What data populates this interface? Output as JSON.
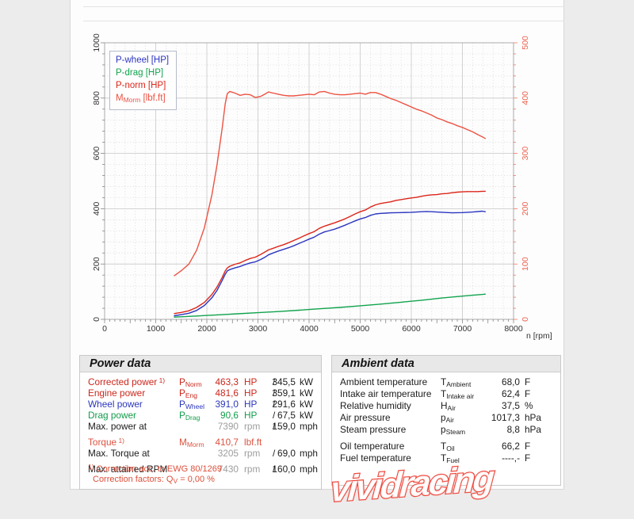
{
  "page": {
    "watermark": "vividracing"
  },
  "power_data": {
    "title": "Power data",
    "rows": [
      {
        "label": "Corrected power",
        "sup": "1)",
        "sym": "P",
        "sub": "Norm",
        "v1": "463,3",
        "u1": "HP",
        "slash": "/",
        "v2": "345,5",
        "u2": "kW",
        "color": "red",
        "dim1": false
      },
      {
        "label": "Engine power",
        "sym": "P",
        "sub": "Eng",
        "v1": "481,6",
        "u1": "HP",
        "slash": "/",
        "v2": "359,1",
        "u2": "kW",
        "color": "red",
        "dim1": false
      },
      {
        "label": "Wheel power",
        "sym": "P",
        "sub": "Wheel",
        "v1": "391,0",
        "u1": "HP",
        "slash": "/",
        "v2": "291,6",
        "u2": "kW",
        "color": "blue",
        "dim1": false
      },
      {
        "label": "Drag power",
        "sym": "P",
        "sub": "Drag",
        "v1": "90,6",
        "u1": "HP",
        "slash": "/",
        "v2": "67,5",
        "u2": "kW",
        "color": "green",
        "dim1": false
      },
      {
        "label": "Max. power at",
        "v1": "7390",
        "u1": "rpm",
        "slash": "/",
        "v2": "159,0",
        "u2": "mph",
        "color": "black",
        "dim1": true
      },
      {
        "gap": true
      },
      {
        "label": "Torque",
        "sup": "1)",
        "sym": "M",
        "sub": "Morm",
        "v1": "410,7",
        "u1": "lbf.ft",
        "color": "orange",
        "dim1": false
      },
      {
        "label": "Max. Torque at",
        "v1": "3205",
        "u1": "rpm",
        "slash": "/",
        "v2": "69,0",
        "u2": "mph",
        "color": "black",
        "dim1": true
      },
      {
        "gap": true
      },
      {
        "label": "Max. attained RPM",
        "v1": "7430",
        "u1": "rpm",
        "slash": "/",
        "v2": "160,0",
        "u2": "mph",
        "color": "black",
        "dim1": true
      }
    ],
    "footnote_line1": {
      "sup": "1)",
      "text": " Correction acc. to EWG 80/1269"
    },
    "footnote_line2": {
      "pre": "Correction factors: Q",
      "sub": "V",
      "post": " =   0,00 %"
    }
  },
  "ambient_data": {
    "title": "Ambient data",
    "rows": [
      {
        "label": "Ambient temperature",
        "sym": "T",
        "sub": "Ambient",
        "val": "68,0",
        "unit": "F"
      },
      {
        "label": "Intake air temperature",
        "sym": "T",
        "sub": "Intake air",
        "val": "62,4",
        "unit": "F"
      },
      {
        "label": "Relative humidity",
        "sym": "H",
        "sub": "Air",
        "val": "37,5",
        "unit": "%"
      },
      {
        "label": "Air pressure",
        "sym": "p",
        "sub": "Air",
        "val": "1017,3",
        "unit": "hPa"
      },
      {
        "label": "Steam pressure",
        "sym": "p",
        "sub": "Steam",
        "val": "8,8",
        "unit": "hPa"
      },
      {
        "gap": true
      },
      {
        "label": "Oil temperature",
        "sym": "T",
        "sub": "Oil",
        "val": "66,2",
        "unit": "F"
      },
      {
        "label": "Fuel temperature",
        "sym": "T",
        "sub": "Fuel",
        "val": "----,-",
        "unit": "F"
      }
    ]
  },
  "chart_data": {
    "type": "line",
    "title": "",
    "grid": true,
    "legend_position": "top-left",
    "x_axis": {
      "label": "n [rpm]",
      "min": 0,
      "max": 8000,
      "major_step": 1000,
      "minor_step": 200,
      "ticks": [
        0,
        1000,
        2000,
        3000,
        4000,
        5000,
        6000,
        7000,
        8000
      ]
    },
    "y_left": {
      "label": "",
      "min": 0,
      "max": 1000,
      "major_step": 200,
      "minor_step": 40,
      "ticks": [
        0,
        200,
        400,
        600,
        800,
        1000
      ],
      "color": "#333333"
    },
    "y_right": {
      "label": "",
      "min": 0,
      "max": 500,
      "major_step": 100,
      "minor_step": 20,
      "ticks": [
        0,
        100,
        200,
        300,
        400,
        500
      ],
      "color": "#ed6450"
    },
    "legend": [
      {
        "pre": "P-wheel [HP]",
        "color": "#2c35c0"
      },
      {
        "pre": "P-drag [HP]",
        "color": "#12a34e"
      },
      {
        "pre": "P-norm [HP]",
        "color": "#dc251a"
      },
      {
        "pre": "M",
        "sub": "Morm",
        "post": " [lbf.ft]",
        "color": "#ed5242"
      }
    ],
    "series": [
      {
        "id": "p-drag",
        "name": "P-drag [HP]",
        "axis": "left",
        "unit": "HP",
        "color": "#12a34e",
        "points": [
          [
            1365,
            8
          ],
          [
            1800,
            12
          ],
          [
            2200,
            16
          ],
          [
            2600,
            20
          ],
          [
            3000,
            24
          ],
          [
            3400,
            28
          ],
          [
            3800,
            33
          ],
          [
            4200,
            38
          ],
          [
            4600,
            43
          ],
          [
            5000,
            49
          ],
          [
            5400,
            55
          ],
          [
            5800,
            62
          ],
          [
            6200,
            69
          ],
          [
            6600,
            77
          ],
          [
            7000,
            84
          ],
          [
            7200,
            87
          ],
          [
            7390,
            90
          ],
          [
            7446,
            91
          ]
        ]
      },
      {
        "id": "p-wheel",
        "name": "P-wheel [HP]",
        "axis": "left",
        "unit": "HP",
        "color": "#2c35c0",
        "points": [
          [
            1365,
            13
          ],
          [
            1500,
            17
          ],
          [
            1650,
            22
          ],
          [
            1800,
            32
          ],
          [
            1950,
            50
          ],
          [
            2100,
            78
          ],
          [
            2200,
            105
          ],
          [
            2300,
            140
          ],
          [
            2360,
            163
          ],
          [
            2400,
            175
          ],
          [
            2450,
            180
          ],
          [
            2550,
            186
          ],
          [
            2650,
            191
          ],
          [
            2750,
            198
          ],
          [
            2850,
            204
          ],
          [
            2950,
            208
          ],
          [
            3050,
            216
          ],
          [
            3150,
            226
          ],
          [
            3205,
            233
          ],
          [
            3300,
            240
          ],
          [
            3400,
            247
          ],
          [
            3500,
            253
          ],
          [
            3600,
            259
          ],
          [
            3700,
            266
          ],
          [
            3800,
            274
          ],
          [
            3900,
            282
          ],
          [
            4000,
            290
          ],
          [
            4100,
            297
          ],
          [
            4200,
            308
          ],
          [
            4300,
            316
          ],
          [
            4400,
            321
          ],
          [
            4500,
            326
          ],
          [
            4600,
            333
          ],
          [
            4700,
            340
          ],
          [
            4800,
            348
          ],
          [
            4900,
            356
          ],
          [
            5000,
            363
          ],
          [
            5100,
            368
          ],
          [
            5200,
            376
          ],
          [
            5300,
            381
          ],
          [
            5400,
            383
          ],
          [
            5500,
            384
          ],
          [
            5600,
            385
          ],
          [
            5800,
            386
          ],
          [
            6000,
            387
          ],
          [
            6200,
            389
          ],
          [
            6300,
            390
          ],
          [
            6400,
            389
          ],
          [
            6500,
            388
          ],
          [
            6600,
            387
          ],
          [
            6800,
            385
          ],
          [
            7000,
            386
          ],
          [
            7100,
            387
          ],
          [
            7200,
            388
          ],
          [
            7390,
            391
          ],
          [
            7446,
            389
          ]
        ]
      },
      {
        "id": "p-norm",
        "name": "P-norm [HP]",
        "axis": "left",
        "unit": "HP",
        "color": "#dc251a",
        "points": [
          [
            1365,
            21
          ],
          [
            1500,
            25
          ],
          [
            1650,
            31
          ],
          [
            1800,
            43
          ],
          [
            1950,
            61
          ],
          [
            2100,
            90
          ],
          [
            2200,
            117
          ],
          [
            2300,
            151
          ],
          [
            2360,
            175
          ],
          [
            2400,
            186
          ],
          [
            2450,
            192
          ],
          [
            2550,
            199
          ],
          [
            2650,
            204
          ],
          [
            2750,
            213
          ],
          [
            2850,
            220
          ],
          [
            2950,
            225
          ],
          [
            3050,
            234
          ],
          [
            3150,
            245
          ],
          [
            3205,
            251
          ],
          [
            3300,
            257
          ],
          [
            3400,
            264
          ],
          [
            3500,
            270
          ],
          [
            3600,
            277
          ],
          [
            3700,
            285
          ],
          [
            3800,
            293
          ],
          [
            3900,
            302
          ],
          [
            4000,
            310
          ],
          [
            4100,
            317
          ],
          [
            4200,
            329
          ],
          [
            4300,
            337
          ],
          [
            4400,
            343
          ],
          [
            4500,
            349
          ],
          [
            4600,
            356
          ],
          [
            4700,
            363
          ],
          [
            4800,
            372
          ],
          [
            4900,
            381
          ],
          [
            5000,
            389
          ],
          [
            5100,
            395
          ],
          [
            5200,
            406
          ],
          [
            5300,
            414
          ],
          [
            5400,
            419
          ],
          [
            5500,
            422
          ],
          [
            5600,
            425
          ],
          [
            5700,
            430
          ],
          [
            5800,
            433
          ],
          [
            5900,
            436
          ],
          [
            6000,
            439
          ],
          [
            6100,
            441
          ],
          [
            6200,
            445
          ],
          [
            6300,
            448
          ],
          [
            6400,
            450
          ],
          [
            6500,
            451
          ],
          [
            6600,
            454
          ],
          [
            6700,
            455
          ],
          [
            6800,
            458
          ],
          [
            6900,
            460
          ],
          [
            7000,
            461
          ],
          [
            7100,
            462
          ],
          [
            7200,
            462
          ],
          [
            7300,
            462
          ],
          [
            7390,
            463
          ],
          [
            7446,
            463
          ]
        ]
      },
      {
        "id": "m-norm",
        "name": "M_Morm [lbf.ft]",
        "axis": "right",
        "unit": "lbf.ft",
        "color": "#ed5242",
        "points": [
          [
            1365,
            79
          ],
          [
            1500,
            88
          ],
          [
            1650,
            100
          ],
          [
            1800,
            125
          ],
          [
            1950,
            165
          ],
          [
            2100,
            225
          ],
          [
            2200,
            280
          ],
          [
            2300,
            345
          ],
          [
            2360,
            390
          ],
          [
            2400,
            408
          ],
          [
            2450,
            412
          ],
          [
            2550,
            409
          ],
          [
            2650,
            405
          ],
          [
            2750,
            407
          ],
          [
            2850,
            406
          ],
          [
            2950,
            401
          ],
          [
            3050,
            403
          ],
          [
            3150,
            408
          ],
          [
            3205,
            411
          ],
          [
            3300,
            409
          ],
          [
            3400,
            407
          ],
          [
            3500,
            405
          ],
          [
            3600,
            404
          ],
          [
            3700,
            404
          ],
          [
            3800,
            405
          ],
          [
            3900,
            406
          ],
          [
            4000,
            407
          ],
          [
            4100,
            406
          ],
          [
            4200,
            411
          ],
          [
            4300,
            412
          ],
          [
            4400,
            409
          ],
          [
            4500,
            407
          ],
          [
            4600,
            406
          ],
          [
            4700,
            406
          ],
          [
            4800,
            407
          ],
          [
            4900,
            408
          ],
          [
            5000,
            409
          ],
          [
            5100,
            407
          ],
          [
            5200,
            410
          ],
          [
            5300,
            410
          ],
          [
            5400,
            407
          ],
          [
            5500,
            403
          ],
          [
            5600,
            399
          ],
          [
            5700,
            396
          ],
          [
            5800,
            392
          ],
          [
            5900,
            388
          ],
          [
            6000,
            384
          ],
          [
            6100,
            380
          ],
          [
            6200,
            377
          ],
          [
            6300,
            373
          ],
          [
            6400,
            369
          ],
          [
            6500,
            364
          ],
          [
            6600,
            361
          ],
          [
            6700,
            357
          ],
          [
            6800,
            354
          ],
          [
            6900,
            350
          ],
          [
            7000,
            347
          ],
          [
            7100,
            343
          ],
          [
            7200,
            339
          ],
          [
            7300,
            334
          ],
          [
            7390,
            330
          ],
          [
            7446,
            327
          ]
        ]
      }
    ],
    "annotations": {
      "max_power_hp": 463.3,
      "max_power_rpm": 7390,
      "max_torque_lbfft": 410.7,
      "max_torque_rpm": 3205,
      "max_attained_rpm": 7430
    }
  }
}
